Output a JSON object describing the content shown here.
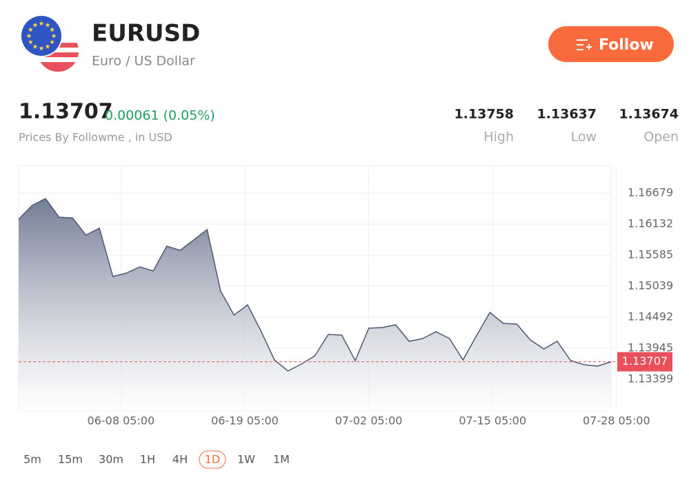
{
  "header": {
    "symbol": "EURUSD",
    "name": "Euro / US Dollar",
    "follow": "Follow"
  },
  "quote": {
    "price": "1.13707",
    "change": "0.00061 (0.05%)",
    "source": "Prices By Followme , in USD",
    "stats": [
      {
        "value": "1.13758",
        "label": "High"
      },
      {
        "value": "1.13637",
        "label": "Low"
      },
      {
        "value": "1.13674",
        "label": "Open"
      }
    ]
  },
  "chart_data": {
    "type": "area",
    "color": "#4d5870",
    "marker_color": "#e8505b",
    "x": [
      0,
      1,
      2,
      3,
      4,
      5,
      6,
      7,
      8,
      9,
      10,
      11,
      12,
      13,
      14,
      15,
      16,
      17,
      18,
      19,
      20,
      21,
      22,
      23,
      24,
      25,
      26,
      27,
      28,
      29,
      30,
      31,
      32,
      33,
      34,
      35,
      36,
      37,
      38,
      39,
      40,
      41,
      42,
      43,
      44
    ],
    "values": [
      1.16217,
      1.1646,
      1.16582,
      1.16254,
      1.16242,
      1.15938,
      1.1606,
      1.15209,
      1.1527,
      1.15379,
      1.15306,
      1.15744,
      1.15671,
      1.15853,
      1.16035,
      1.14954,
      1.14529,
      1.14711,
      1.14249,
      1.13739,
      1.13545,
      1.13666,
      1.13812,
      1.14189,
      1.14176,
      1.13727,
      1.14298,
      1.1431,
      1.14359,
      1.14067,
      1.14116,
      1.14237,
      1.14116,
      1.13739,
      1.14164,
      1.14577,
      1.14383,
      1.14371,
      1.14092,
      1.13934,
      1.14067,
      1.13727,
      1.13654,
      1.1363,
      1.13707
    ],
    "xlim": [
      0,
      44
    ],
    "xticks": [
      {
        "value": 7.6,
        "label": "06-08 05:00"
      },
      {
        "value": 16.8,
        "label": "06-19 05:00"
      },
      {
        "value": 26,
        "label": "07-02 05:00"
      },
      {
        "value": 35.2,
        "label": "07-15 05:00"
      },
      {
        "value": 44.4,
        "label": "07-28 05:00"
      }
    ],
    "ylim": [
      1.1284,
      1.17165
    ],
    "yticks": [
      1.16679,
      1.16132,
      1.15585,
      1.15039,
      1.14492,
      1.13945,
      1.13399
    ],
    "grid": true
  },
  "timeframes": {
    "items": [
      "5m",
      "15m",
      "30m",
      "1H",
      "4H",
      "1D",
      "1W",
      "1M"
    ],
    "selected": "1D"
  }
}
